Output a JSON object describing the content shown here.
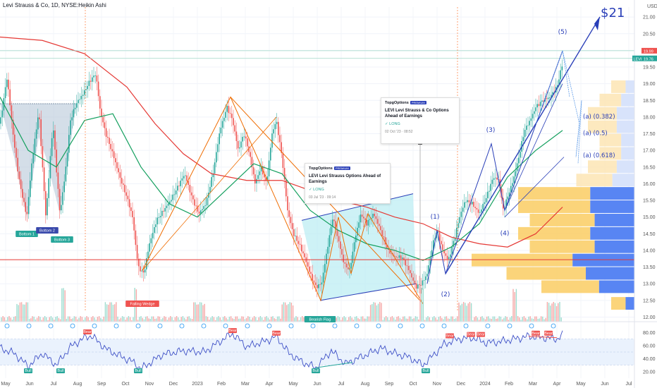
{
  "title": "Levi Strauss & Co, 1D, NYSE:Heikin Ashi",
  "price_axis": {
    "currency": "USD",
    "ticks": [
      "21.00",
      "20.50",
      "20.00",
      "19.50",
      "19.00",
      "18.50",
      "18.00",
      "17.50",
      "17.00",
      "16.50",
      "16.00",
      "15.50",
      "15.00",
      "14.50",
      "14.00",
      "13.50",
      "13.00",
      "12.50",
      "12.00"
    ]
  },
  "rsi_axis": {
    "ticks": [
      "80.00",
      "60.00",
      "40.00",
      "20.00"
    ]
  },
  "time_axis": {
    "ticks": [
      "May",
      "Jun",
      "Jul",
      "Aug",
      "Sep",
      "Oct",
      "Nov",
      "Dec",
      "2023",
      "Feb",
      "Mar",
      "Apr",
      "May",
      "Jun",
      "Jul",
      "Aug",
      "Sep",
      "Oct",
      "Nov",
      "Dec",
      "2024",
      "Feb",
      "Mar",
      "Apr",
      "May",
      "Jun",
      "Jul"
    ]
  },
  "price_labels": {
    "last": "19.99",
    "ticker": "LEVI",
    "ticker_price": "19.76"
  },
  "target_label": "$21",
  "waves": [
    "(1)",
    "(2)",
    "(3)",
    "(4)",
    "(5)"
  ],
  "fib": [
    "(a) (0.382)",
    "(a) (0.5)",
    "(a) (0.618)"
  ],
  "patterns": {
    "bottom1": "Bottom 1",
    "bottom2": "Bottom 2",
    "bottom3": "Bottom 3",
    "falling_wedge": "Falling Wedge",
    "bearish_flag": "Bearish Flag"
  },
  "rsi_tags": {
    "bull": "Bull",
    "bear": "Bear"
  },
  "ideas": [
    {
      "brand": "TopgOptions",
      "badge": "PREMIUM",
      "headline": "LEVI Levi Strauss Options Ahead of Earnings",
      "position": "✓ LONG",
      "time": "03 Jul '23 · 09:14"
    },
    {
      "brand": "TopgOptions",
      "badge": "PREMIUM",
      "headline": "LEVI Levi Strauss & Co Options Ahead of Earnings",
      "position": "✓ LONG",
      "time": "02 Oct '23 · 08:52"
    }
  ],
  "colors": {
    "up": "#26a69a",
    "down": "#ef5350",
    "wave": "#2a3fb8",
    "sma_red": "#e53935",
    "sma_green": "#15a05f"
  },
  "chart_data": {
    "type": "candlestick",
    "title": "Levi Strauss & Co, 1D, NYSE:Heikin Ashi",
    "ylim": [
      12.2,
      21.3
    ],
    "series_path": [
      [
        0,
        17.8
      ],
      [
        10,
        19.2
      ],
      [
        20,
        17.2
      ],
      [
        28,
        16.0
      ],
      [
        38,
        15.0
      ],
      [
        45,
        16.6
      ],
      [
        55,
        18.2
      ],
      [
        65,
        15.0
      ],
      [
        75,
        17.8
      ],
      [
        85,
        15.1
      ],
      [
        92,
        16.2
      ],
      [
        100,
        17.9
      ],
      [
        108,
        18.4
      ],
      [
        118,
        18.7
      ],
      [
        128,
        19.1
      ],
      [
        136,
        19.3
      ],
      [
        142,
        18.2
      ],
      [
        150,
        17.5
      ],
      [
        160,
        16.9
      ],
      [
        170,
        16.2
      ],
      [
        180,
        15.6
      ],
      [
        188,
        15.0
      ],
      [
        196,
        13.5
      ],
      [
        204,
        13.3
      ],
      [
        212,
        14.2
      ],
      [
        222,
        14.9
      ],
      [
        232,
        15.2
      ],
      [
        242,
        15.5
      ],
      [
        252,
        15.9
      ],
      [
        262,
        16.3
      ],
      [
        272,
        15.6
      ],
      [
        282,
        15.1
      ],
      [
        292,
        15.4
      ],
      [
        302,
        16.3
      ],
      [
        312,
        17.6
      ],
      [
        322,
        18.3
      ],
      [
        330,
        17.9
      ],
      [
        338,
        17.0
      ],
      [
        346,
        17.5
      ],
      [
        354,
        16.9
      ],
      [
        362,
        16.0
      ],
      [
        370,
        16.5
      ],
      [
        378,
        16.0
      ],
      [
        386,
        17.5
      ],
      [
        392,
        17.9
      ],
      [
        400,
        16.8
      ],
      [
        408,
        15.2
      ],
      [
        416,
        14.5
      ],
      [
        424,
        14.2
      ],
      [
        432,
        13.8
      ],
      [
        440,
        13.3
      ],
      [
        448,
        12.9
      ],
      [
        456,
        13.0
      ],
      [
        464,
        14.0
      ],
      [
        472,
        15.0
      ],
      [
        480,
        14.3
      ],
      [
        488,
        13.6
      ],
      [
        496,
        13.4
      ],
      [
        504,
        14.4
      ],
      [
        512,
        15.1
      ],
      [
        520,
        14.8
      ],
      [
        530,
        15.1
      ],
      [
        540,
        14.6
      ],
      [
        550,
        14.0
      ],
      [
        560,
        13.8
      ],
      [
        570,
        13.8
      ],
      [
        580,
        13.4
      ],
      [
        590,
        12.9
      ],
      [
        598,
        13.0
      ],
      [
        606,
        13.3
      ],
      [
        614,
        14.2
      ],
      [
        620,
        14.6
      ],
      [
        628,
        14.0
      ],
      [
        636,
        13.7
      ],
      [
        644,
        14.3
      ],
      [
        652,
        15.0
      ],
      [
        660,
        15.5
      ],
      [
        670,
        15.4
      ],
      [
        680,
        15.1
      ],
      [
        690,
        15.6
      ],
      [
        700,
        16.2
      ],
      [
        708,
        16.1
      ],
      [
        714,
        15.2
      ],
      [
        720,
        15.6
      ],
      [
        728,
        16.1
      ],
      [
        736,
        16.8
      ],
      [
        744,
        17.6
      ],
      [
        752,
        17.9
      ],
      [
        760,
        18.3
      ],
      [
        770,
        18.5
      ],
      [
        780,
        18.6
      ],
      [
        790,
        18.9
      ],
      [
        798,
        19.6
      ]
    ],
    "sma_long": [
      [
        0,
        20.4
      ],
      [
        60,
        20.3
      ],
      [
        120,
        19.9
      ],
      [
        180,
        18.9
      ],
      [
        220,
        17.8
      ],
      [
        260,
        16.9
      ],
      [
        300,
        16.3
      ],
      [
        350,
        16.1
      ],
      [
        400,
        16.1
      ],
      [
        440,
        15.8
      ],
      [
        480,
        15.5
      ],
      [
        520,
        15.3
      ],
      [
        560,
        15.0
      ],
      [
        600,
        14.8
      ],
      [
        640,
        14.4
      ],
      [
        680,
        14.2
      ],
      [
        720,
        14.1
      ],
      [
        760,
        14.5
      ],
      [
        798,
        15.3
      ]
    ],
    "sma_short": [
      [
        0,
        18.6
      ],
      [
        40,
        17.0
      ],
      [
        80,
        16.5
      ],
      [
        120,
        17.9
      ],
      [
        160,
        18.1
      ],
      [
        200,
        16.5
      ],
      [
        240,
        15.4
      ],
      [
        280,
        15.0
      ],
      [
        320,
        15.8
      ],
      [
        360,
        16.6
      ],
      [
        400,
        16.3
      ],
      [
        440,
        15.2
      ],
      [
        480,
        14.6
      ],
      [
        520,
        14.2
      ],
      [
        560,
        14.0
      ],
      [
        600,
        13.7
      ],
      [
        640,
        14.1
      ],
      [
        680,
        14.8
      ],
      [
        720,
        16.2
      ],
      [
        760,
        17.0
      ],
      [
        798,
        17.6
      ]
    ],
    "volume_profile_bins": [
      [
        12.4,
        0.1
      ],
      [
        12.9,
        0.4
      ],
      [
        13.3,
        0.55
      ],
      [
        13.7,
        0.7
      ],
      [
        14.1,
        0.45
      ],
      [
        14.5,
        0.5
      ],
      [
        14.9,
        0.45
      ],
      [
        15.3,
        0.5
      ],
      [
        15.7,
        0.5
      ],
      [
        16.1,
        0.25
      ],
      [
        16.5,
        0.2
      ],
      [
        16.9,
        0.15
      ],
      [
        17.3,
        0.15
      ],
      [
        17.7,
        0.2
      ],
      [
        18.1,
        0.2
      ],
      [
        18.5,
        0.15
      ],
      [
        18.9,
        0.1
      ]
    ],
    "rsi": [
      [
        0,
        56
      ],
      [
        20,
        48
      ],
      [
        40,
        28
      ],
      [
        60,
        48
      ],
      [
        80,
        30
      ],
      [
        100,
        58
      ],
      [
        120,
        72
      ],
      [
        130,
        75
      ],
      [
        150,
        55
      ],
      [
        170,
        44
      ],
      [
        190,
        34
      ],
      [
        200,
        24
      ],
      [
        230,
        46
      ],
      [
        260,
        52
      ],
      [
        290,
        50
      ],
      [
        320,
        72
      ],
      [
        330,
        78
      ],
      [
        350,
        58
      ],
      [
        380,
        68
      ],
      [
        392,
        74
      ],
      [
        410,
        48
      ],
      [
        430,
        34
      ],
      [
        448,
        26
      ],
      [
        470,
        52
      ],
      [
        490,
        32
      ],
      [
        520,
        46
      ],
      [
        540,
        56
      ],
      [
        560,
        48
      ],
      [
        580,
        42
      ],
      [
        600,
        30
      ],
      [
        610,
        40
      ],
      [
        630,
        62
      ],
      [
        650,
        70
      ],
      [
        670,
        72
      ],
      [
        690,
        64
      ],
      [
        710,
        66
      ],
      [
        730,
        70
      ],
      [
        750,
        74
      ],
      [
        770,
        72
      ],
      [
        790,
        70
      ],
      [
        798,
        76
      ]
    ]
  }
}
